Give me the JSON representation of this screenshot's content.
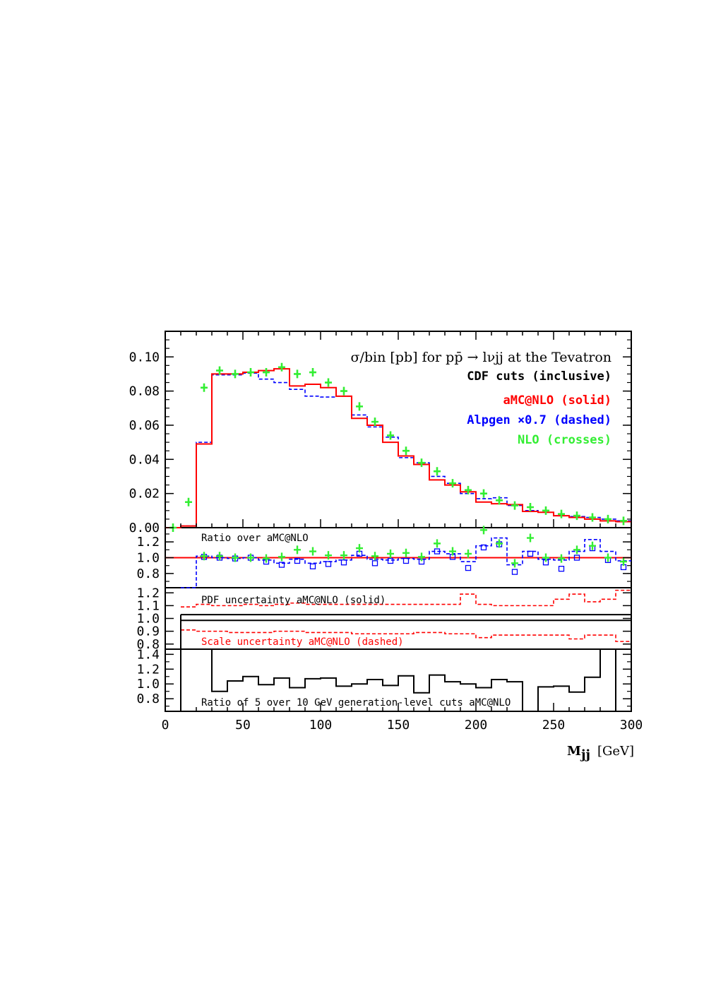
{
  "chart_data": {
    "type": "line",
    "x_axis": {
      "label_main": "M",
      "label_sub": "jj",
      "label_unit": "[GeV]",
      "range": [
        0,
        300
      ],
      "ticks": [
        "0",
        "50",
        "100",
        "150",
        "200",
        "250",
        "300"
      ]
    },
    "colors": {
      "red": "#ff0000",
      "blue": "#0000ff",
      "green": "#33ee33",
      "black": "#000000"
    },
    "bin_edges": [
      0,
      10,
      20,
      30,
      40,
      50,
      60,
      70,
      80,
      90,
      100,
      110,
      120,
      130,
      140,
      150,
      160,
      170,
      180,
      190,
      200,
      210,
      220,
      230,
      240,
      250,
      260,
      270,
      280,
      290,
      300
    ],
    "main": {
      "title": "σ/bin [pb] for pp̄ → lνjj at the Tevatron",
      "subtitle": "CDF cuts (inclusive)",
      "ylim": [
        0,
        0.115
      ],
      "yticks": [
        "0.00",
        "0.02",
        "0.04",
        "0.06",
        "0.08",
        "0.10"
      ],
      "legend": [
        "aMC@NLO (solid)",
        "Alpgen ×0.7 (dashed)",
        "NLO (crosses)"
      ],
      "series": [
        {
          "values": [
            0.0,
            0.001,
            0.049,
            0.09,
            0.09,
            0.091,
            0.092,
            0.093,
            0.083,
            0.084,
            0.082,
            0.077,
            0.064,
            0.06,
            0.05,
            0.042,
            0.037,
            0.028,
            0.025,
            0.021,
            0.015,
            0.014,
            0.0135,
            0.0095,
            0.009,
            0.007,
            0.006,
            0.005,
            0.004,
            0.0035
          ]
        },
        {
          "values": [
            0.0,
            0.001,
            0.05,
            0.0895,
            0.0895,
            0.0905,
            0.087,
            0.085,
            0.081,
            0.077,
            0.0765,
            0.077,
            0.066,
            0.059,
            0.053,
            0.041,
            0.038,
            0.03,
            0.026,
            0.02,
            0.017,
            0.0175,
            0.013,
            0.01,
            0.009,
            0.007,
            0.0065,
            0.006,
            0.005,
            0.004
          ]
        },
        {
          "x": [
            5,
            15,
            25,
            35,
            45,
            55,
            65,
            75,
            85,
            95,
            105,
            115,
            125,
            135,
            145,
            155,
            165,
            175,
            185,
            195,
            205,
            215,
            225,
            235,
            245,
            255,
            265,
            275,
            285,
            295
          ],
          "values": [
            0.0,
            0.015,
            0.082,
            0.092,
            0.09,
            0.091,
            0.091,
            0.094,
            0.09,
            0.091,
            0.085,
            0.08,
            0.071,
            0.062,
            0.054,
            0.045,
            0.038,
            0.033,
            0.026,
            0.022,
            0.02,
            0.016,
            0.013,
            0.012,
            0.01,
            0.008,
            0.007,
            0.006,
            0.005,
            0.004
          ]
        }
      ]
    },
    "ratio": {
      "label": "Ratio over aMC@NLO",
      "ylim": [
        0.62,
        1.38
      ],
      "yticks": [
        "0.8",
        "1.0",
        "1.2"
      ],
      "dashed": [
        0.0,
        0.0,
        1.02,
        1.0,
        0.99,
        1.0,
        0.97,
        0.93,
        0.98,
        0.93,
        0.95,
        0.97,
        1.03,
        0.98,
        0.97,
        0.99,
        0.98,
        1.08,
        1.05,
        0.95,
        1.15,
        1.25,
        0.91,
        1.08,
        0.98,
        0.97,
        1.08,
        1.23,
        1.08,
        0.96
      ],
      "dashed_x_end": 302,
      "boxes_x": [
        25,
        35,
        45,
        55,
        65,
        75,
        85,
        95,
        105,
        115,
        125,
        135,
        145,
        155,
        165,
        175,
        185,
        195,
        205,
        215,
        225,
        235,
        245,
        255,
        265,
        275,
        285,
        295
      ],
      "boxes": [
        1.01,
        1.0,
        0.99,
        1.0,
        0.95,
        0.91,
        0.96,
        0.89,
        0.92,
        0.94,
        1.05,
        0.93,
        0.96,
        0.96,
        0.95,
        1.08,
        1.01,
        0.87,
        1.13,
        1.17,
        0.82,
        1.05,
        0.94,
        0.86,
        1.0,
        1.12,
        0.97,
        0.88
      ],
      "crosses_x": [
        25,
        35,
        45,
        55,
        65,
        75,
        85,
        95,
        105,
        115,
        125,
        135,
        145,
        155,
        165,
        175,
        185,
        195,
        205,
        215,
        225,
        235,
        245,
        255,
        265,
        275,
        285,
        295
      ],
      "crosses": [
        1.02,
        1.02,
        1.0,
        1.0,
        0.99,
        1.01,
        1.1,
        1.08,
        1.03,
        1.03,
        1.12,
        1.02,
        1.05,
        1.06,
        1.01,
        1.18,
        1.08,
        1.05,
        1.35,
        1.18,
        0.93,
        1.25,
        1.0,
        0.99,
        1.1,
        1.15,
        1.0,
        0.95
      ]
    },
    "uncertainty": {
      "label_pdf": "PDF uncertainty aMC@NLO (solid)",
      "label_scale": "Scale uncertainty aMC@NLO (dashed)",
      "ylim": [
        0.76,
        1.24
      ],
      "yticks": [
        "0.8",
        "0.9",
        "1.0",
        "1.1",
        "1.2"
      ],
      "pdf_upper": [
        1.03,
        1.03,
        1.03,
        1.03,
        1.03,
        1.03,
        1.03,
        1.03,
        1.03,
        1.03,
        1.03,
        1.03,
        1.03,
        1.03,
        1.03,
        1.03,
        1.03,
        1.03,
        1.03,
        1.03,
        1.03,
        1.03,
        1.03,
        1.03,
        1.03,
        1.03,
        1.03,
        1.03
      ],
      "pdf_lower": [
        0.985,
        0.985,
        0.985,
        0.985,
        0.985,
        0.985,
        0.985,
        0.985,
        0.985,
        0.985,
        0.985,
        0.985,
        0.985,
        0.985,
        0.985,
        0.985,
        0.985,
        0.985,
        0.985,
        0.985,
        0.985,
        0.985,
        0.985,
        0.985,
        0.985,
        0.985,
        0.985,
        0.985
      ],
      "scale_upper": [
        1.09,
        1.11,
        1.1,
        1.1,
        1.11,
        1.1,
        1.11,
        1.12,
        1.11,
        1.11,
        1.11,
        1.11,
        1.11,
        1.11,
        1.11,
        1.11,
        1.11,
        1.11,
        1.19,
        1.11,
        1.1,
        1.1,
        1.1,
        1.1,
        1.15,
        1.19,
        1.13,
        1.15,
        1.22,
        1.17
      ],
      "scale_lower": [
        0.91,
        0.9,
        0.9,
        0.89,
        0.89,
        0.89,
        0.9,
        0.9,
        0.89,
        0.89,
        0.89,
        0.88,
        0.88,
        0.88,
        0.88,
        0.89,
        0.89,
        0.88,
        0.88,
        0.85,
        0.87,
        0.87,
        0.87,
        0.87,
        0.87,
        0.84,
        0.87,
        0.87,
        0.82,
        0.85
      ],
      "scale_x_start": 10,
      "pdf_x_start": 10
    },
    "cutratio": {
      "label": "Ratio of 5 over 10 GeV generation-level cuts aMC@NLO",
      "ylim": [
        0.63,
        1.47
      ],
      "yticks": [
        "0.8",
        "1.0",
        "1.2",
        "1.4"
      ],
      "values": [
        1.5,
        1.5,
        0.9,
        1.04,
        1.1,
        0.99,
        1.08,
        0.95,
        1.07,
        1.08,
        0.97,
        1.0,
        1.06,
        0.98,
        1.11,
        0.88,
        1.12,
        1.03,
        1.0,
        0.95,
        1.06,
        1.03,
        0.62,
        0.96,
        0.97,
        0.89,
        1.09,
        1.5,
        0.6,
        0.8
      ],
      "x_start": 10
    }
  }
}
